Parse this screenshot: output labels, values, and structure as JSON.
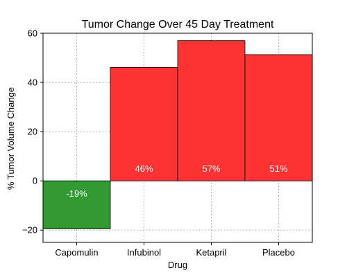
{
  "chart_data": {
    "type": "bar",
    "title": "Tumor Change Over 45 Day Treatment",
    "xlabel": "Drug",
    "ylabel": "% Tumor Volume Change",
    "categories": [
      "Capomulin",
      "Infubinol",
      "Ketapril",
      "Placebo"
    ],
    "values": [
      -19.5,
      46.1,
      57.0,
      51.3
    ],
    "data_labels": [
      "-19%",
      "46%",
      "57%",
      "51%"
    ],
    "ylim": [
      -25,
      60
    ],
    "yticks": [
      -20,
      0,
      20,
      40,
      60
    ],
    "ytick_labels": [
      "−20",
      "0",
      "20",
      "40",
      "60"
    ],
    "grid": true,
    "colors": {
      "negative": "#339933",
      "positive": "#ff3333"
    }
  }
}
